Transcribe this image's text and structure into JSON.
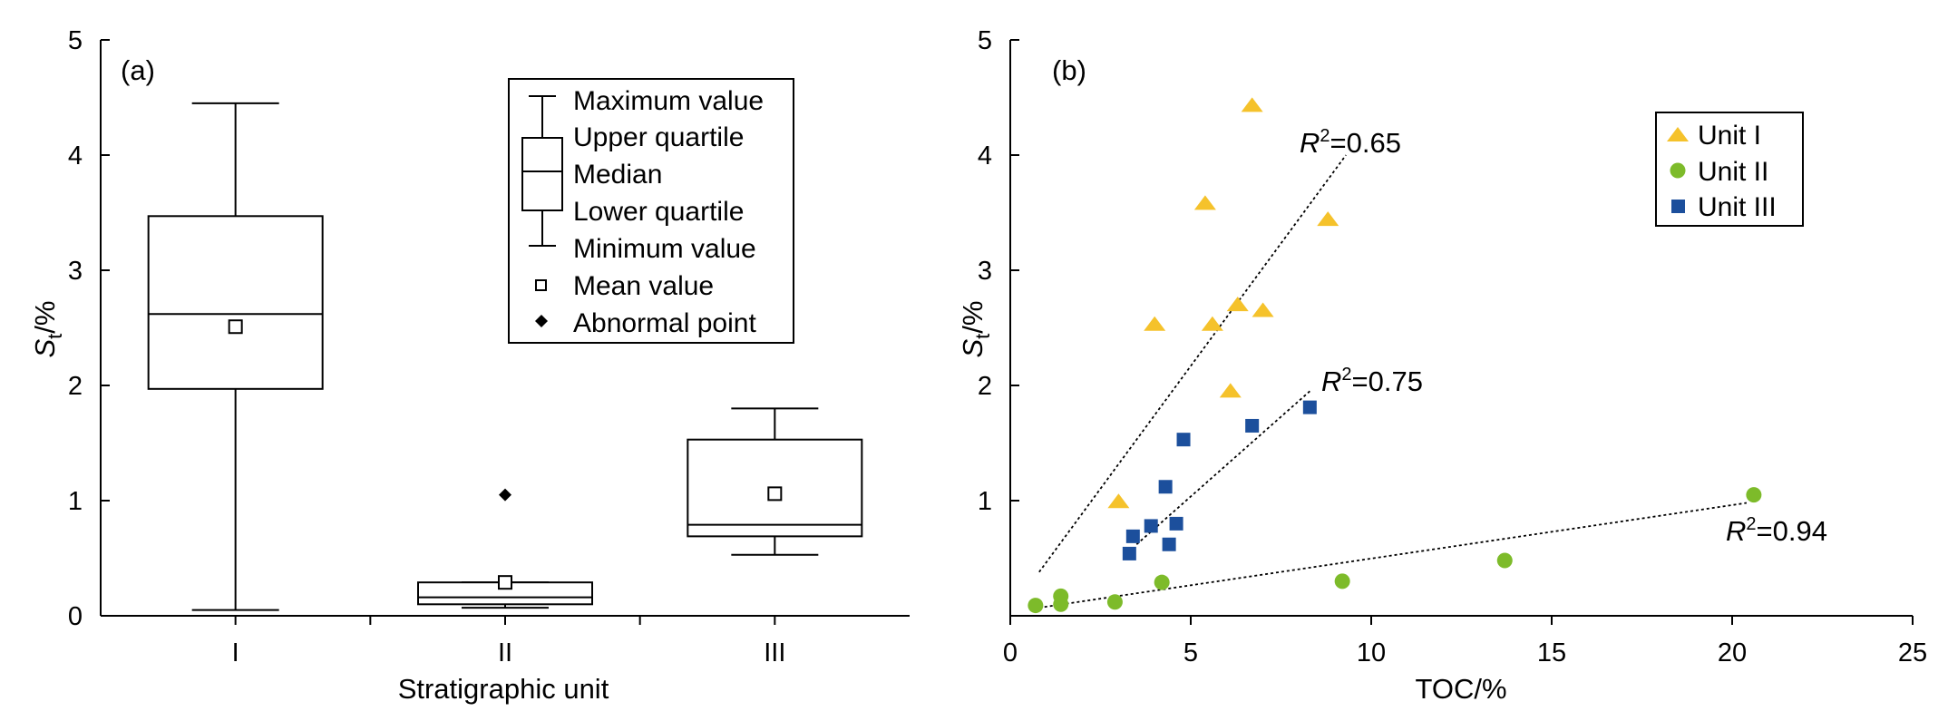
{
  "chart_data": [
    {
      "type": "box",
      "panel_label": "(a)",
      "xlabel": "Stratigraphic unit",
      "ylabel_base": "S",
      "ylabel_sub": "t",
      "ylabel_suffix": "/%",
      "ylim": [
        0,
        5
      ],
      "yticks": [
        "0",
        "1",
        "2",
        "3",
        "4",
        "5"
      ],
      "categories": [
        "I",
        "II",
        "III"
      ],
      "boxes": [
        {
          "unit": "I",
          "min": 0.05,
          "q1": 1.97,
          "median": 2.62,
          "q3": 3.47,
          "max": 4.45,
          "mean": 2.51,
          "outliers": []
        },
        {
          "unit": "II",
          "min": 0.07,
          "q1": 0.1,
          "median": 0.16,
          "q3": 0.29,
          "max": 0.29,
          "mean": 0.29,
          "outliers": [
            1.05
          ]
        },
        {
          "unit": "III",
          "min": 0.53,
          "q1": 0.69,
          "median": 0.79,
          "q3": 1.53,
          "max": 1.8,
          "mean": 1.06,
          "outliers": []
        }
      ],
      "legend": {
        "max": "Maximum value",
        "q3": "Upper quartile",
        "median": "Median",
        "q1": "Lower quartile",
        "min": "Minimum value",
        "mean": "Mean value",
        "abnormal": "Abnormal point"
      }
    },
    {
      "type": "scatter",
      "panel_label": "(b)",
      "xlabel": "TOC/%",
      "ylabel_base": "S",
      "ylabel_sub": "t",
      "ylabel_suffix": "/%",
      "xlim": [
        0,
        25
      ],
      "ylim": [
        0,
        5
      ],
      "xticks": [
        "0",
        "5",
        "10",
        "15",
        "20",
        "25"
      ],
      "yticks": [
        "1",
        "2",
        "3",
        "4",
        "5"
      ],
      "series": [
        {
          "name": "Unit I",
          "marker": "triangle",
          "color": "#f5c22b",
          "points": [
            [
              6.7,
              4.43
            ],
            [
              5.4,
              3.58
            ],
            [
              8.8,
              3.44
            ],
            [
              6.3,
              2.7
            ],
            [
              7.0,
              2.65
            ],
            [
              4.0,
              2.53
            ],
            [
              5.6,
              2.53
            ],
            [
              6.1,
              1.95
            ],
            [
              3.0,
              0.99
            ]
          ],
          "fit": {
            "x": [
              0.8,
              9.3
            ],
            "y": [
              0.38,
              4.0
            ],
            "r2": "0.65"
          }
        },
        {
          "name": "Unit II",
          "marker": "circle",
          "color": "#7dbb2a",
          "points": [
            [
              0.7,
              0.09
            ],
            [
              1.4,
              0.17
            ],
            [
              1.4,
              0.1
            ],
            [
              2.9,
              0.12
            ],
            [
              4.2,
              0.29
            ],
            [
              9.2,
              0.3
            ],
            [
              13.7,
              0.48
            ],
            [
              20.6,
              1.05
            ]
          ],
          "fit": {
            "x": [
              0.8,
              20.4
            ],
            "y": [
              0.07,
              0.98
            ],
            "r2": "0.94"
          }
        },
        {
          "name": "Unit III",
          "marker": "square",
          "color": "#1c4f9c",
          "points": [
            [
              8.3,
              1.81
            ],
            [
              6.7,
              1.65
            ],
            [
              4.8,
              1.53
            ],
            [
              4.3,
              1.12
            ],
            [
              3.9,
              0.78
            ],
            [
              4.6,
              0.8
            ],
            [
              3.4,
              0.69
            ],
            [
              4.4,
              0.62
            ],
            [
              3.3,
              0.54
            ]
          ],
          "fit": {
            "x": [
              3.5,
              8.3
            ],
            "y": [
              0.62,
              1.95
            ],
            "r2": "0.75"
          }
        }
      ],
      "r2_label_prefix": "R",
      "r2_label_sup": "2",
      "r2_label_eq": "="
    }
  ]
}
